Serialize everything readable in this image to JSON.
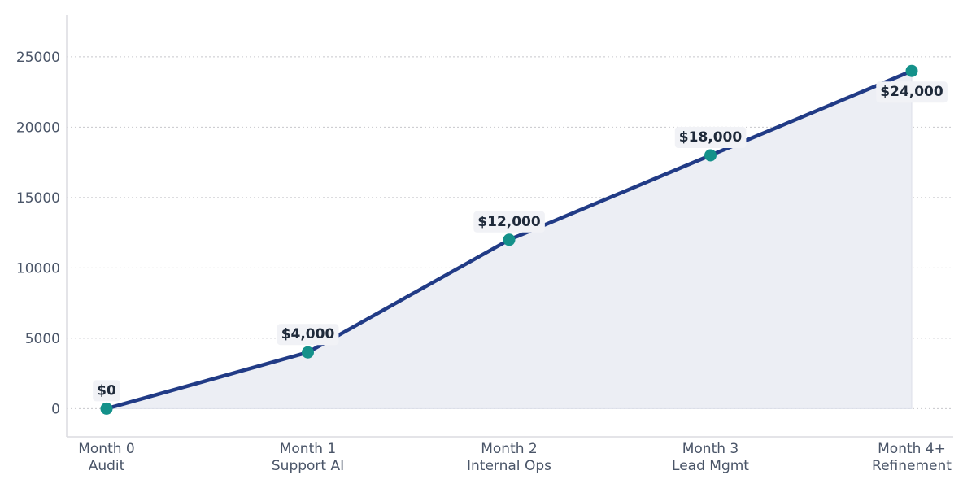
{
  "chart_data": {
    "type": "line",
    "categories": [
      [
        "Month 0",
        "Audit"
      ],
      [
        "Month 1",
        "Support AI"
      ],
      [
        "Month 2",
        "Internal Ops"
      ],
      [
        "Month 3",
        "Lead Mgmt"
      ],
      [
        "Month 4+",
        "Refinement"
      ]
    ],
    "series": [
      {
        "values": [
          0,
          4000,
          12000,
          18000,
          24000
        ],
        "data_labels": [
          "$0",
          "$4,000",
          "$12,000",
          "$18,000",
          "$24,000"
        ]
      }
    ],
    "title": "",
    "xlabel": "",
    "ylabel": "",
    "ylim": [
      -2000,
      28000
    ],
    "yticks": [
      0,
      5000,
      10000,
      15000,
      20000,
      25000
    ],
    "ytick_labels": [
      "0",
      "5000",
      "10000",
      "15000",
      "20000",
      "25000"
    ],
    "grid": "horizontal-dotted",
    "fill_under_line": true,
    "colors": {
      "line": "#213b86",
      "marker": "#14918a",
      "fill": "#eceef4",
      "grid": "#c8c8cc",
      "axis": "#dcdce0",
      "label_box": "#f1f2f6"
    }
  }
}
